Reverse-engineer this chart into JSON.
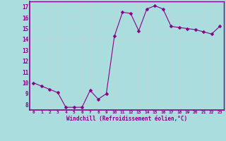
{
  "x": [
    0,
    1,
    2,
    3,
    4,
    5,
    6,
    7,
    8,
    9,
    10,
    11,
    12,
    13,
    14,
    15,
    16,
    17,
    18,
    19,
    20,
    21,
    22,
    23
  ],
  "y": [
    10.0,
    9.7,
    9.4,
    9.1,
    7.75,
    7.75,
    7.75,
    9.3,
    8.5,
    9.0,
    14.3,
    16.5,
    16.4,
    14.8,
    16.8,
    17.1,
    16.8,
    15.2,
    15.1,
    15.0,
    14.9,
    14.7,
    14.5,
    15.2
  ],
  "line_color": "#880088",
  "marker": "D",
  "marker_size": 2.5,
  "bg_color": "#aadddd",
  "grid_color": "#cceeee",
  "xlabel": "Windchill (Refroidissement éolien,°C)",
  "xlabel_color": "#880088",
  "tick_color": "#880088",
  "spine_color": "#880088",
  "ylim": [
    7.5,
    17.5
  ],
  "xlim": [
    -0.5,
    23.5
  ],
  "yticks": [
    8,
    9,
    10,
    11,
    12,
    13,
    14,
    15,
    16,
    17
  ],
  "xticks": [
    0,
    1,
    2,
    3,
    4,
    5,
    6,
    7,
    8,
    9,
    10,
    11,
    12,
    13,
    14,
    15,
    16,
    17,
    18,
    19,
    20,
    21,
    22,
    23
  ],
  "xtick_labels": [
    "0",
    "1",
    "2",
    "3",
    "4",
    "5",
    "6",
    "7",
    "8",
    "9",
    "10",
    "11",
    "12",
    "13",
    "14",
    "15",
    "16",
    "17",
    "18",
    "19",
    "20",
    "21",
    "22",
    "23"
  ]
}
